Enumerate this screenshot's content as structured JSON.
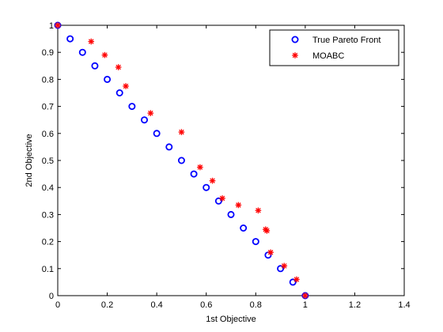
{
  "chart_data": {
    "type": "scatter",
    "xlabel": "1st Objective",
    "ylabel": "2nd Objective",
    "xlim": [
      0,
      1.4
    ],
    "ylim": [
      0,
      1
    ],
    "xticks": [
      "0",
      "0.2",
      "0.4",
      "0.6",
      "0.8",
      "1",
      "1.2",
      "1.4"
    ],
    "yticks": [
      "0",
      "0.1",
      "0.2",
      "0.3",
      "0.4",
      "0.5",
      "0.6",
      "0.7",
      "0.8",
      "0.9",
      "1"
    ],
    "grid": false,
    "legend_position": "top-right",
    "series": [
      {
        "name": "True Pareto Front",
        "marker": "circle",
        "color": "#0000ff",
        "x": [
          0,
          0.05,
          0.1,
          0.15,
          0.2,
          0.25,
          0.3,
          0.35,
          0.4,
          0.45,
          0.5,
          0.55,
          0.6,
          0.65,
          0.7,
          0.75,
          0.8,
          0.85,
          0.9,
          0.95,
          1.0
        ],
        "y": [
          1.0,
          0.95,
          0.9,
          0.85,
          0.8,
          0.75,
          0.7,
          0.65,
          0.6,
          0.55,
          0.5,
          0.45,
          0.4,
          0.35,
          0.3,
          0.25,
          0.2,
          0.15,
          0.1,
          0.05,
          0.0
        ]
      },
      {
        "name": "MOABC",
        "marker": "star",
        "color": "#ff0000",
        "x": [
          0,
          0.135,
          0.19,
          0.245,
          0.275,
          0.375,
          0.5,
          0.575,
          0.625,
          0.665,
          0.73,
          0.81,
          0.84,
          0.845,
          0.86,
          0.915,
          0.965,
          1.0
        ],
        "y": [
          1.0,
          0.94,
          0.89,
          0.845,
          0.775,
          0.675,
          0.605,
          0.475,
          0.425,
          0.36,
          0.335,
          0.315,
          0.245,
          0.24,
          0.16,
          0.11,
          0.06,
          0.0
        ]
      }
    ]
  }
}
